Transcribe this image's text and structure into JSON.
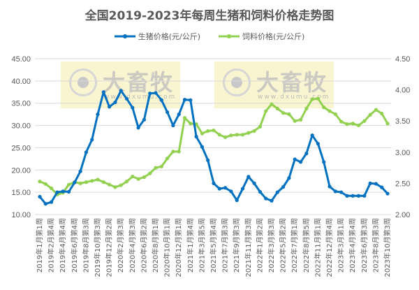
{
  "chart_data": {
    "type": "line",
    "title": "全国2019-2023年每周生猪和饲料价格走势图",
    "x_tick_labels": [
      "2019年1月第1周",
      "2019年2月第4周",
      "2019年4月第4周",
      "2019年6月第4周",
      "2019年8月第3周",
      "2019年10月第3周",
      "2019年12月第2周",
      "2020年2月第3周",
      "2020年4月第3周",
      "2020年6月第2周",
      "2020年8月第1周",
      "2020年10月第1周",
      "2020年12月第1周",
      "2021年1月第4周",
      "2021年3月第5周",
      "2021年5月第4周",
      "2021年7月第3周",
      "2021年9月第3周",
      "2021年11月第3周",
      "2022年1月第2周",
      "2022年3月第3周",
      "2022年5月第2周",
      "2022年7月第1周",
      "2022年8月第5周",
      "2022年11月第1周",
      "2022年12月第4周",
      "2023年3月第1周",
      "2023年4月第4周",
      "2023年6月第3周",
      "2023年8月第3周",
      "2023年10月第3周"
    ],
    "y_left": {
      "ylim": [
        10,
        45
      ],
      "ticks": [
        "10.00",
        "15.00",
        "20.00",
        "25.00",
        "30.00",
        "35.00",
        "40.00",
        "45.00"
      ]
    },
    "y_right": {
      "ylim": [
        2.0,
        4.5
      ],
      "ticks": [
        "2.00",
        "2.50",
        "3.00",
        "3.50",
        "4.00",
        "4.50"
      ]
    },
    "grid": true,
    "legend": "top",
    "series": [
      {
        "name": "生猪价格(元/公斤)",
        "axis": "left",
        "color": "#0070C0",
        "values": [
          14.0,
          12.4,
          12.8,
          15.0,
          15.2,
          15.1,
          17.2,
          19.7,
          24.0,
          26.8,
          32.5,
          37.5,
          34.2,
          35.2,
          37.8,
          36.0,
          34.0,
          29.5,
          31.3,
          37.2,
          37.3,
          35.7,
          33.0,
          30.0,
          32.5,
          35.8,
          35.7,
          27.5,
          25.2,
          22.2,
          17.0,
          15.8,
          16.0,
          15.2,
          13.2,
          15.8,
          18.5,
          17.0,
          15.1,
          13.6,
          13.1,
          15.0,
          16.2,
          18.2,
          22.4,
          21.8,
          23.7,
          27.8,
          25.9,
          21.8,
          16.3,
          15.2,
          15.0,
          14.2,
          14.2,
          14.2,
          14.2,
          17.0,
          16.9,
          16.1,
          14.7
        ]
      },
      {
        "name": "饲料价格(元/公斤)",
        "axis": "right",
        "color": "#92D050",
        "values": [
          2.53,
          2.49,
          2.42,
          2.32,
          2.35,
          2.48,
          2.52,
          2.5,
          2.52,
          2.54,
          2.56,
          2.52,
          2.48,
          2.44,
          2.47,
          2.53,
          2.61,
          2.57,
          2.6,
          2.66,
          2.75,
          2.77,
          2.9,
          3.01,
          3.01,
          3.55,
          3.46,
          3.45,
          3.3,
          3.34,
          3.35,
          3.28,
          3.24,
          3.27,
          3.28,
          3.28,
          3.31,
          3.34,
          3.41,
          3.66,
          3.77,
          3.7,
          3.63,
          3.61,
          3.5,
          3.52,
          3.7,
          3.85,
          3.86,
          3.72,
          3.66,
          3.61,
          3.49,
          3.45,
          3.46,
          3.43,
          3.5,
          3.6,
          3.68,
          3.62,
          3.46
        ]
      }
    ]
  },
  "watermark": {
    "brand": "大畜牧",
    "url": "www.dxumu.com"
  }
}
